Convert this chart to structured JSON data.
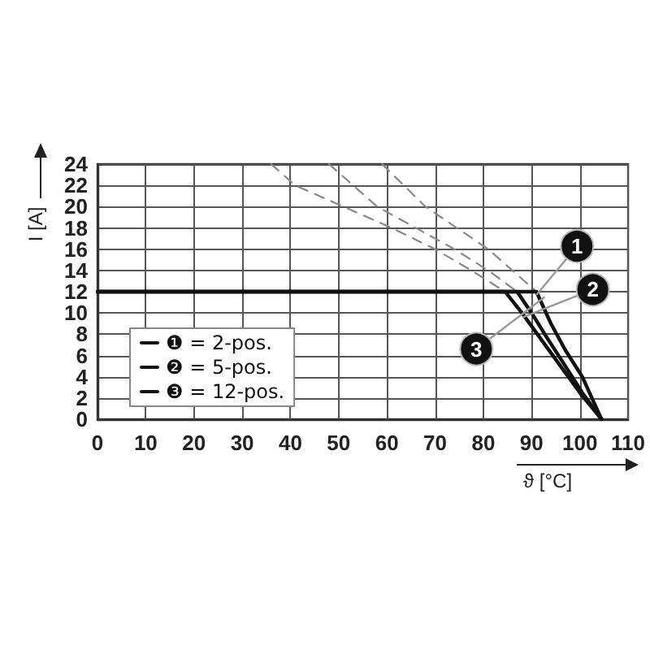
{
  "chart_data": {
    "type": "line",
    "xlabel": "ϑ [°C]",
    "ylabel": "I [A]",
    "xlim": [
      0,
      110
    ],
    "xticks": [
      0,
      10,
      20,
      30,
      40,
      50,
      60,
      70,
      80,
      90,
      100,
      110
    ],
    "ylim": [
      0,
      24
    ],
    "yticks": [
      0,
      2,
      4,
      6,
      8,
      10,
      12,
      14,
      16,
      18,
      20,
      22,
      24
    ],
    "grid": true,
    "legend": "bottom left",
    "marker": "none",
    "series": [
      {
        "name": "❶ = 2-pos.",
        "color": "#111111",
        "line_style": "solid",
        "x": [
          0,
          91,
          94,
          97,
          100.5,
          102.5,
          104.5
        ],
        "values": [
          12,
          12,
          9,
          6.5,
          4,
          2,
          0
        ]
      },
      {
        "name": "❷ = 5-pos.",
        "color": "#111111",
        "line_style": "solid",
        "x": [
          0,
          87,
          90,
          93,
          97,
          100.5,
          104.5
        ],
        "values": [
          12,
          12,
          10,
          7.8,
          5,
          2.5,
          0
        ]
      },
      {
        "name": "❸ = 12-pos.",
        "color": "#111111",
        "line_style": "solid",
        "x": [
          0,
          84.5,
          88,
          92,
          96,
          100,
          104.5
        ],
        "values": [
          12,
          12,
          10,
          7.5,
          5,
          2.5,
          0
        ]
      },
      {
        "color": "#888888",
        "line_style": "dashed",
        "x": [
          59,
          68,
          81,
          86,
          91
        ],
        "values": [
          24,
          20,
          16,
          14,
          12
        ]
      },
      {
        "color": "#888888",
        "line_style": "dashed",
        "x": [
          48,
          58,
          74,
          81,
          87
        ],
        "values": [
          24,
          20,
          16,
          14,
          12
        ]
      },
      {
        "color": "#888888",
        "line_style": "dashed",
        "x": [
          36,
          41,
          61,
          70,
          77.5,
          84.5
        ],
        "values": [
          24,
          22,
          18,
          16,
          14,
          12
        ]
      }
    ],
    "annotations": [
      {
        "text": "1",
        "x": 91,
        "y": 11.7
      },
      {
        "text": "2",
        "x": 88.2,
        "y": 9.6
      },
      {
        "text": "3",
        "x": 92.7,
        "y": 11.5
      }
    ]
  }
}
